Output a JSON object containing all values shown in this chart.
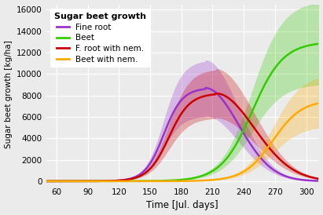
{
  "title": "Sugar beet growth",
  "xlabel": "Time [Jul. days]",
  "ylabel": "Sugar beet growth [kg/ha]",
  "xlim": [
    50,
    312
  ],
  "ylim": [
    -300,
    16500
  ],
  "xticks": [
    60,
    90,
    120,
    150,
    180,
    210,
    240,
    270,
    300
  ],
  "yticks": [
    0,
    2000,
    4000,
    6000,
    8000,
    10000,
    12000,
    14000,
    16000
  ],
  "bg_color": "#ebebeb",
  "lines": {
    "fine_root": {
      "color": "#9933cc",
      "label": "Fine root",
      "peak_x": 203,
      "peak_y": 8700,
      "rise_mid": 163,
      "rise_scale": 9,
      "fall_scale": 32
    },
    "beet": {
      "color": "#33cc00",
      "label": "Beet",
      "sigmoid_mid": 248,
      "sigmoid_scale": 15,
      "plateau": 13000
    },
    "fine_root_nem": {
      "color": "#cc0000",
      "label": "F. root with nem.",
      "peak_x": 213,
      "peak_y": 8200,
      "rise_mid": 168,
      "rise_scale": 10,
      "fall_scale": 37
    },
    "beet_nem": {
      "color": "#ffaa00",
      "label": "Beet with nem.",
      "sigmoid_mid": 268,
      "sigmoid_scale": 14,
      "plateau": 7600
    }
  },
  "ribbon_alpha": 0.28,
  "ribbon_fractions": {
    "fine_root": 0.3,
    "beet": 0.3,
    "fine_root_nem": 0.28,
    "beet_nem": 0.32
  }
}
